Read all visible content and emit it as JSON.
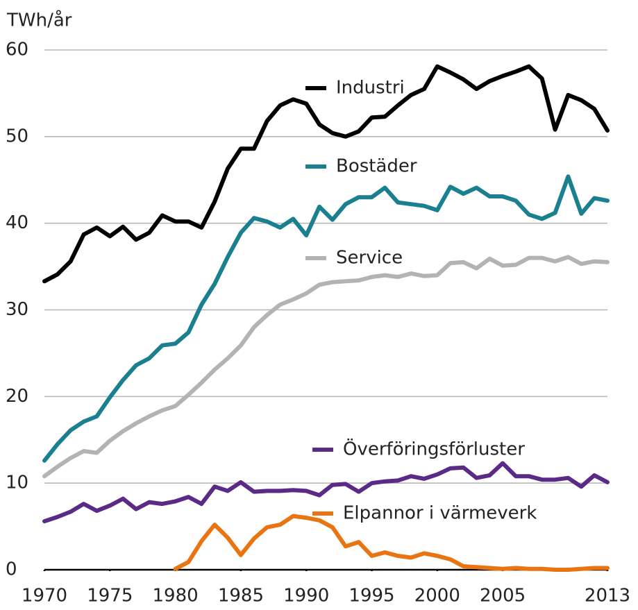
{
  "chart_data": {
    "type": "line",
    "ylabel": "TWh/år",
    "x": [
      1970,
      1971,
      1972,
      1973,
      1974,
      1975,
      1976,
      1977,
      1978,
      1979,
      1980,
      1981,
      1982,
      1983,
      1984,
      1985,
      1986,
      1987,
      1988,
      1989,
      1990,
      1991,
      1992,
      1993,
      1994,
      1995,
      1996,
      1997,
      1998,
      1999,
      2000,
      2001,
      2002,
      2003,
      2004,
      2005,
      2006,
      2007,
      2008,
      2009,
      2010,
      2011,
      2012,
      2013
    ],
    "xlim": [
      1970,
      2013
    ],
    "xticks": [
      1970,
      1975,
      1980,
      1985,
      1990,
      1995,
      2000,
      2005,
      2013
    ],
    "ylim": [
      0,
      60
    ],
    "yticks": [
      0,
      10,
      20,
      30,
      40,
      50,
      60
    ],
    "grid": true,
    "series": [
      {
        "name": "Industri",
        "color": "#000000",
        "values": [
          33.3,
          34.1,
          35.6,
          38.7,
          39.5,
          38.5,
          39.6,
          38.1,
          38.9,
          40.9,
          40.2,
          40.2,
          39.5,
          42.5,
          46.3,
          48.6,
          48.6,
          51.8,
          53.6,
          54.3,
          53.8,
          51.4,
          50.4,
          50.0,
          50.6,
          52.2,
          52.3,
          53.6,
          54.8,
          55.5,
          58.1,
          57.4,
          56.6,
          55.5,
          56.4,
          57.0,
          57.5,
          58.1,
          56.7,
          50.8,
          54.8,
          54.2,
          53.2,
          50.7
        ]
      },
      {
        "name": "Bostäder",
        "color": "#1a7f8e",
        "values": [
          12.6,
          14.5,
          16.1,
          17.1,
          17.7,
          19.9,
          21.9,
          23.6,
          24.4,
          25.9,
          26.1,
          27.4,
          30.6,
          33.0,
          36.1,
          38.9,
          40.6,
          40.2,
          39.5,
          40.5,
          38.6,
          41.9,
          40.4,
          42.2,
          43.0,
          43.0,
          44.1,
          42.4,
          42.2,
          42.0,
          41.5,
          44.2,
          43.4,
          44.1,
          43.1,
          43.1,
          42.6,
          41.0,
          40.5,
          41.2,
          45.4,
          41.1,
          42.9,
          42.6
        ]
      },
      {
        "name": "Service",
        "color": "#b3b3b3",
        "values": [
          10.8,
          11.9,
          12.9,
          13.7,
          13.5,
          14.9,
          16.0,
          16.9,
          17.7,
          18.4,
          18.9,
          20.2,
          21.6,
          23.1,
          24.4,
          25.9,
          28.0,
          29.4,
          30.6,
          31.2,
          31.9,
          32.9,
          33.2,
          33.3,
          33.4,
          33.8,
          34.0,
          33.8,
          34.2,
          33.9,
          34.0,
          35.4,
          35.5,
          34.8,
          35.9,
          35.1,
          35.2,
          36.0,
          36.0,
          35.6,
          36.1,
          35.3,
          35.6,
          35.5
        ]
      },
      {
        "name": "Överföringsförluster",
        "color": "#5b2a86",
        "values": [
          5.6,
          6.1,
          6.7,
          7.6,
          6.8,
          7.4,
          8.2,
          7.0,
          7.8,
          7.6,
          7.9,
          8.4,
          7.6,
          9.6,
          9.1,
          10.1,
          9.0,
          9.1,
          9.1,
          9.2,
          9.1,
          8.6,
          9.8,
          9.9,
          9.0,
          10.0,
          10.2,
          10.3,
          10.8,
          10.5,
          11.0,
          11.7,
          11.8,
          10.6,
          10.9,
          12.3,
          10.8,
          10.8,
          10.4,
          10.4,
          10.6,
          9.6,
          10.9,
          10.1
        ]
      },
      {
        "name": "Elpannor i värmeverk",
        "color": "#e87511",
        "values": [
          null,
          null,
          null,
          null,
          null,
          null,
          null,
          null,
          null,
          null,
          0.1,
          0.9,
          3.3,
          5.2,
          3.7,
          1.7,
          3.6,
          4.9,
          5.2,
          6.2,
          6.0,
          5.7,
          4.9,
          2.7,
          3.2,
          1.6,
          2.0,
          1.6,
          1.4,
          1.9,
          1.6,
          1.2,
          0.4,
          0.3,
          0.2,
          0.1,
          0.2,
          0.1,
          0.1,
          0.0,
          0.0,
          0.1,
          0.2,
          0.2
        ]
      }
    ]
  }
}
